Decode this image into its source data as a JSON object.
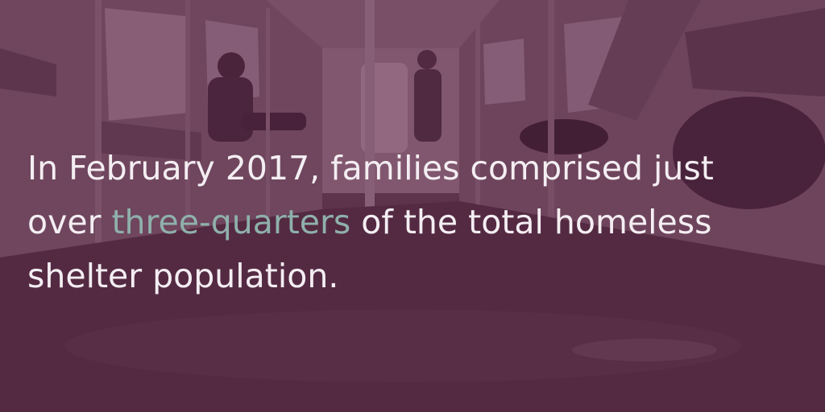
{
  "quote": {
    "line1": "In February 2017, families comprised just",
    "line2_before": "over ",
    "line2_highlight": "three-quarters",
    "line2_after": " of the total homeless",
    "line3": "shelter population."
  },
  "colors": {
    "overlay": "#5c2446",
    "text": "#f4eef2",
    "highlight": "#8fb0ab"
  }
}
